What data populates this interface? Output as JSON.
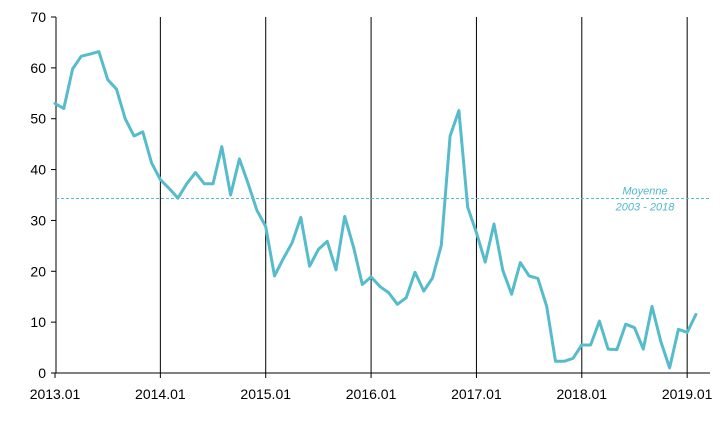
{
  "chart_data": {
    "type": "line",
    "title": "",
    "xlabel": "",
    "ylabel": "",
    "ylim": [
      0,
      70
    ],
    "xlim": [
      "2013.01",
      "2019.01"
    ],
    "yticks": [
      0,
      10,
      20,
      30,
      40,
      50,
      60,
      70
    ],
    "xticks": [
      "2013.01",
      "2014.01",
      "2015.01",
      "2016.01",
      "2017.01",
      "2018.01",
      "2019.01"
    ],
    "grid": "vertical lines at each year",
    "line_color": "#56bccb",
    "reference_line": {
      "value": 34.3,
      "label_line1": "Moyenne",
      "label_line2": "2003 - 2018",
      "color": "#56bccb"
    },
    "series": [
      {
        "x": [
          "2013.01",
          "2013.02",
          "2013.03",
          "2013.04",
          "2013.05",
          "2013.06",
          "2013.07",
          "2013.08",
          "2013.09",
          "2013.10",
          "2013.11",
          "2013.12",
          "2014.01",
          "2014.02",
          "2014.03",
          "2014.04",
          "2014.05",
          "2014.06",
          "2014.07",
          "2014.08",
          "2014.09",
          "2014.10",
          "2014.11",
          "2014.12",
          "2015.01",
          "2015.02",
          "2015.03",
          "2015.04",
          "2015.05",
          "2015.06",
          "2015.07",
          "2015.08",
          "2015.09",
          "2015.10",
          "2015.11",
          "2015.12",
          "2016.01",
          "2016.02",
          "2016.03",
          "2016.04",
          "2016.05",
          "2016.06",
          "2016.07",
          "2016.08",
          "2016.09",
          "2016.10",
          "2016.11",
          "2016.12",
          "2017.01",
          "2017.02",
          "2017.03",
          "2017.04",
          "2017.05",
          "2017.06",
          "2017.07",
          "2017.08",
          "2017.09",
          "2017.10",
          "2017.11",
          "2017.12",
          "2018.01",
          "2018.02",
          "2018.03",
          "2018.04",
          "2018.05",
          "2018.06",
          "2018.07",
          "2018.08",
          "2018.09",
          "2018.10",
          "2018.11",
          "2018.12",
          "2019.01",
          "2019.02"
        ],
        "values": [
          53.0,
          52.0,
          59.8,
          62.3,
          62.7,
          63.2,
          57.7,
          55.8,
          50.0,
          46.6,
          47.4,
          41.3,
          38.0,
          36.3,
          34.4,
          37.2,
          39.4,
          37.2,
          37.2,
          44.5,
          35.0,
          42.1,
          37.2,
          32.0,
          28.8,
          19.1,
          22.5,
          25.6,
          30.6,
          21.0,
          24.3,
          25.9,
          20.3,
          30.8,
          24.8,
          17.4,
          18.9,
          17.0,
          15.8,
          13.5,
          14.8,
          19.8,
          16.1,
          18.7,
          25.1,
          46.6,
          51.6,
          32.6,
          27.6,
          21.8,
          29.3,
          20.2,
          15.5,
          21.7,
          19.1,
          18.6,
          13.1,
          2.3,
          2.3,
          2.9,
          5.5,
          5.5,
          10.2,
          4.7,
          4.6,
          9.6,
          8.9,
          4.7,
          13.1,
          6.2,
          1.0,
          8.6,
          8.0,
          11.5
        ]
      }
    ]
  }
}
